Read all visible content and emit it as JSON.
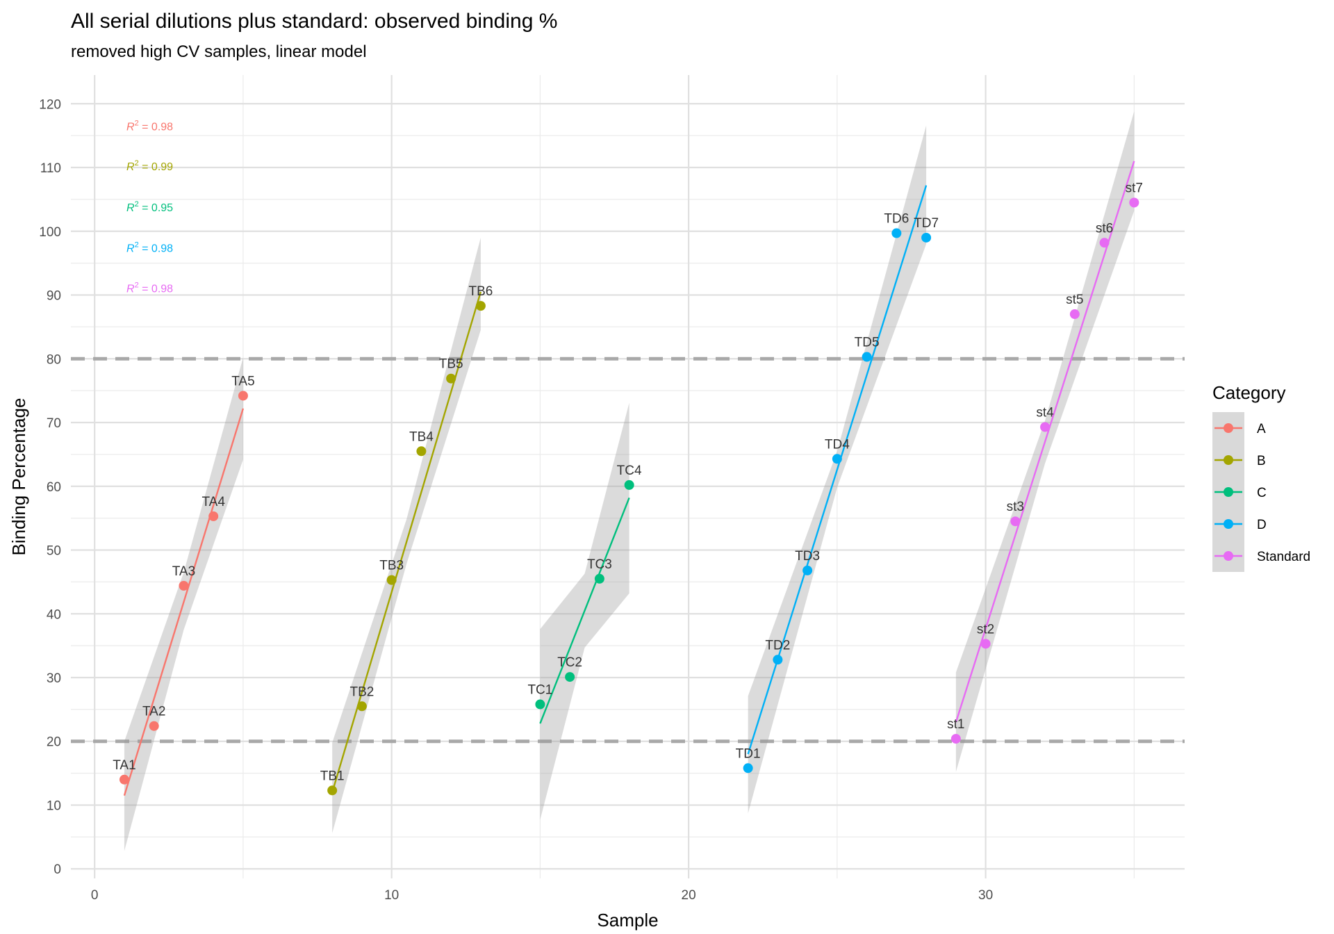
{
  "chart_data": {
    "type": "scatter",
    "title": "All serial dilutions plus standard: observed binding %",
    "subtitle": "removed high CV samples, linear model",
    "xlabel": "Sample",
    "ylabel": "Binding Percentage",
    "xlim": [
      -0.8,
      36.7
    ],
    "ylim": [
      -1.5,
      124.5
    ],
    "x_ticks": [
      0,
      10,
      20,
      30
    ],
    "y_ticks": [
      0,
      10,
      20,
      30,
      40,
      50,
      60,
      70,
      80,
      90,
      100,
      110,
      120
    ],
    "grid": true,
    "reference_lines": [
      20,
      80
    ],
    "legend": {
      "title": "Category",
      "position": "right"
    },
    "r2_labels": [
      {
        "series": "A",
        "prefix": "R",
        "sup": "2",
        "text": " = 0.98",
        "y": 116.5
      },
      {
        "series": "B",
        "prefix": "R",
        "sup": "2",
        "text": " = 0.99",
        "y": 110.2
      },
      {
        "series": "C",
        "prefix": "R",
        "sup": "2",
        "text": " = 0.95",
        "y": 103.8
      },
      {
        "series": "D",
        "prefix": "R",
        "sup": "2",
        "text": " = 0.98",
        "y": 97.4
      },
      {
        "series": "Standard",
        "prefix": "R",
        "sup": "2",
        "text": " = 0.98",
        "y": 91.1
      }
    ],
    "series": [
      {
        "name": "A",
        "color": "#F8766D",
        "points": [
          {
            "label": "TA1",
            "x": 1,
            "y": 14.0
          },
          {
            "label": "TA2",
            "x": 2,
            "y": 22.4
          },
          {
            "label": "TA3",
            "x": 3,
            "y": 44.4
          },
          {
            "label": "TA4",
            "x": 4,
            "y": 55.3
          },
          {
            "label": "TA5",
            "x": 5,
            "y": 74.2
          }
        ],
        "fit": {
          "x0": 1,
          "y0": 11.5,
          "x1": 5,
          "y1": 72.2
        },
        "band": [
          {
            "x": 1,
            "lo": 2.8,
            "hi": 20.0
          },
          {
            "x": 3,
            "lo": 37.5,
            "hi": 46.5
          },
          {
            "x": 5,
            "lo": 64.2,
            "hi": 80.2
          }
        ]
      },
      {
        "name": "B",
        "color": "#A3A500",
        "points": [
          {
            "label": "TB1",
            "x": 8,
            "y": 12.3
          },
          {
            "label": "TB2",
            "x": 9,
            "y": 25.5
          },
          {
            "label": "TB3",
            "x": 10,
            "y": 45.3
          },
          {
            "label": "TB4",
            "x": 11,
            "y": 65.5
          },
          {
            "label": "TB5",
            "x": 12,
            "y": 76.9
          },
          {
            "label": "TB6",
            "x": 13,
            "y": 88.3
          }
        ],
        "fit": {
          "x0": 8,
          "y0": 12.0,
          "x1": 13,
          "y1": 90.5
        },
        "band": [
          {
            "x": 8,
            "lo": 5.6,
            "hi": 19.8
          },
          {
            "x": 10.5,
            "lo": 47.8,
            "hi": 54.8
          },
          {
            "x": 13,
            "lo": 84.5,
            "hi": 99.0
          }
        ]
      },
      {
        "name": "C",
        "color": "#00BF7D",
        "points": [
          {
            "label": "TC1",
            "x": 15,
            "y": 25.8
          },
          {
            "label": "TC2",
            "x": 16,
            "y": 30.1
          },
          {
            "label": "TC3",
            "x": 17,
            "y": 45.5
          },
          {
            "label": "TC4",
            "x": 18,
            "y": 60.2
          }
        ],
        "fit": {
          "x0": 15,
          "y0": 22.8,
          "x1": 18,
          "y1": 58.2
        },
        "band": [
          {
            "x": 15,
            "lo": 7.7,
            "hi": 37.6
          },
          {
            "x": 16.5,
            "lo": 34.7,
            "hi": 46.3
          },
          {
            "x": 18,
            "lo": 43.2,
            "hi": 73.1
          }
        ]
      },
      {
        "name": "D",
        "color": "#00B0F6",
        "points": [
          {
            "label": "TD1",
            "x": 22,
            "y": 15.8
          },
          {
            "label": "TD2",
            "x": 23,
            "y": 32.8
          },
          {
            "label": "TD3",
            "x": 24,
            "y": 46.8
          },
          {
            "label": "TD4",
            "x": 25,
            "y": 64.3
          },
          {
            "label": "TD5",
            "x": 26,
            "y": 80.3
          },
          {
            "label": "TD6",
            "x": 27,
            "y": 99.7
          },
          {
            "label": "TD7",
            "x": 28,
            "y": 99.0
          }
        ],
        "fit": {
          "x0": 22,
          "y0": 18.0,
          "x1": 28,
          "y1": 107.2
        },
        "band": [
          {
            "x": 22,
            "lo": 8.7,
            "hi": 27.1
          },
          {
            "x": 25,
            "lo": 59.8,
            "hi": 65.5
          },
          {
            "x": 28,
            "lo": 98.0,
            "hi": 116.6
          }
        ]
      },
      {
        "name": "Standard",
        "color": "#E76BF3",
        "points": [
          {
            "label": "st1",
            "x": 29,
            "y": 20.4
          },
          {
            "label": "st2",
            "x": 30,
            "y": 35.3
          },
          {
            "label": "st3",
            "x": 31,
            "y": 54.5
          },
          {
            "label": "st4",
            "x": 32,
            "y": 69.3
          },
          {
            "label": "st5",
            "x": 33,
            "y": 87.0
          },
          {
            "label": "st6",
            "x": 34,
            "y": 98.2
          },
          {
            "label": "st7",
            "x": 35,
            "y": 104.5
          }
        ],
        "fit": {
          "x0": 29,
          "y0": 23.0,
          "x1": 35,
          "y1": 111.0
        },
        "band": [
          {
            "x": 29,
            "lo": 15.2,
            "hi": 30.8
          },
          {
            "x": 32,
            "lo": 63.6,
            "hi": 70.3
          },
          {
            "x": 35,
            "lo": 103.2,
            "hi": 118.8
          }
        ]
      }
    ]
  }
}
